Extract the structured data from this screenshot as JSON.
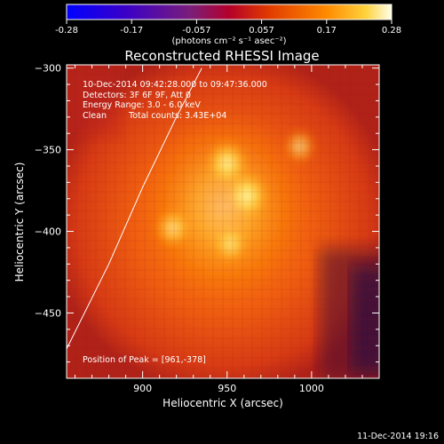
{
  "chart_data": {
    "type": "heatmap",
    "title": "Reconstructed RHESSI Image",
    "colorbar": {
      "ticks": [
        "-0.28",
        "-0.17",
        "-0.057",
        "0.057",
        "0.17",
        "0.28"
      ],
      "unit_label": "(photons cm⁻² s⁻¹ asec⁻²)",
      "range": [
        -0.28,
        0.28
      ]
    },
    "xlabel": "Heliocentric X (arcsec)",
    "ylabel": "Heliocentric Y (arcsec)",
    "xticks": [
      900,
      950,
      1000
    ],
    "yticks": [
      -300,
      -350,
      -400,
      -450
    ],
    "xlim": [
      855,
      1040
    ],
    "ylim": [
      -490,
      -298
    ],
    "annotations": {
      "line1": "10-Dec-2014 09:42:28.000 to 09:47:36.000",
      "line2": "Detectors: 3F 6F 9F, Att 0",
      "line3": "Energy Range: 3.0 - 6.0 keV",
      "line4_a": "Clean",
      "line4_b": "Total counts: 3.43E+04",
      "peak": "Position of Peak = [961,-378]"
    },
    "sources": [
      {
        "x": 950,
        "y": -358,
        "intensity": 0.27
      },
      {
        "x": 962,
        "y": -378,
        "intensity": 0.28
      },
      {
        "x": 918,
        "y": -398,
        "intensity": 0.22
      },
      {
        "x": 952,
        "y": -408,
        "intensity": 0.2
      },
      {
        "x": 993,
        "y": -348,
        "intensity": 0.16
      }
    ],
    "limb_curve": [
      [
        855,
        -472
      ],
      [
        880,
        -420
      ],
      [
        900,
        -373
      ],
      [
        920,
        -330
      ],
      [
        935,
        -300
      ]
    ],
    "peak": [
      961,
      -378
    ]
  },
  "footer": {
    "timestamp": "11-Dec-2014 19:16"
  }
}
